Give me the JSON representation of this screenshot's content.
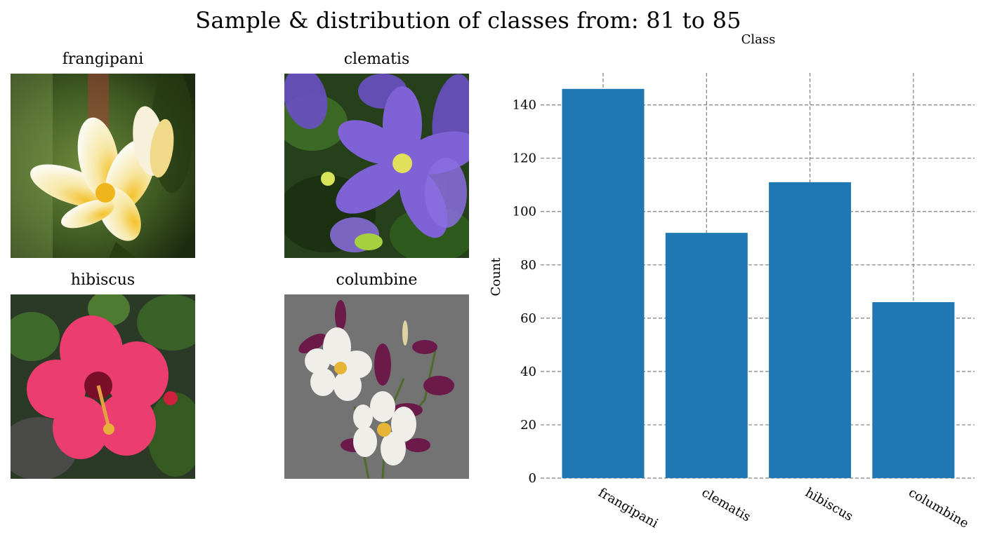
{
  "figure": {
    "title": "Sample & distribution of classes from: 81 to 85"
  },
  "samples": [
    {
      "label": "frangipani",
      "icon": "frangipani-photo"
    },
    {
      "label": "clematis",
      "icon": "clematis-photo"
    },
    {
      "label": "hibiscus",
      "icon": "hibiscus-photo"
    },
    {
      "label": "columbine",
      "icon": "columbine-photo"
    }
  ],
  "chart_data": {
    "type": "bar",
    "title": "Class",
    "xlabel": "",
    "ylabel": "Count",
    "categories": [
      "frangipani",
      "clematis",
      "hibiscus",
      "columbine"
    ],
    "values": [
      146,
      92,
      111,
      66
    ],
    "ylim": [
      0,
      152
    ],
    "yticks": [
      0,
      20,
      40,
      60,
      80,
      100,
      120,
      140
    ],
    "grid": true,
    "grid_style": "dashed",
    "bar_color": "#1f77b4",
    "grid_color": "#808080"
  }
}
